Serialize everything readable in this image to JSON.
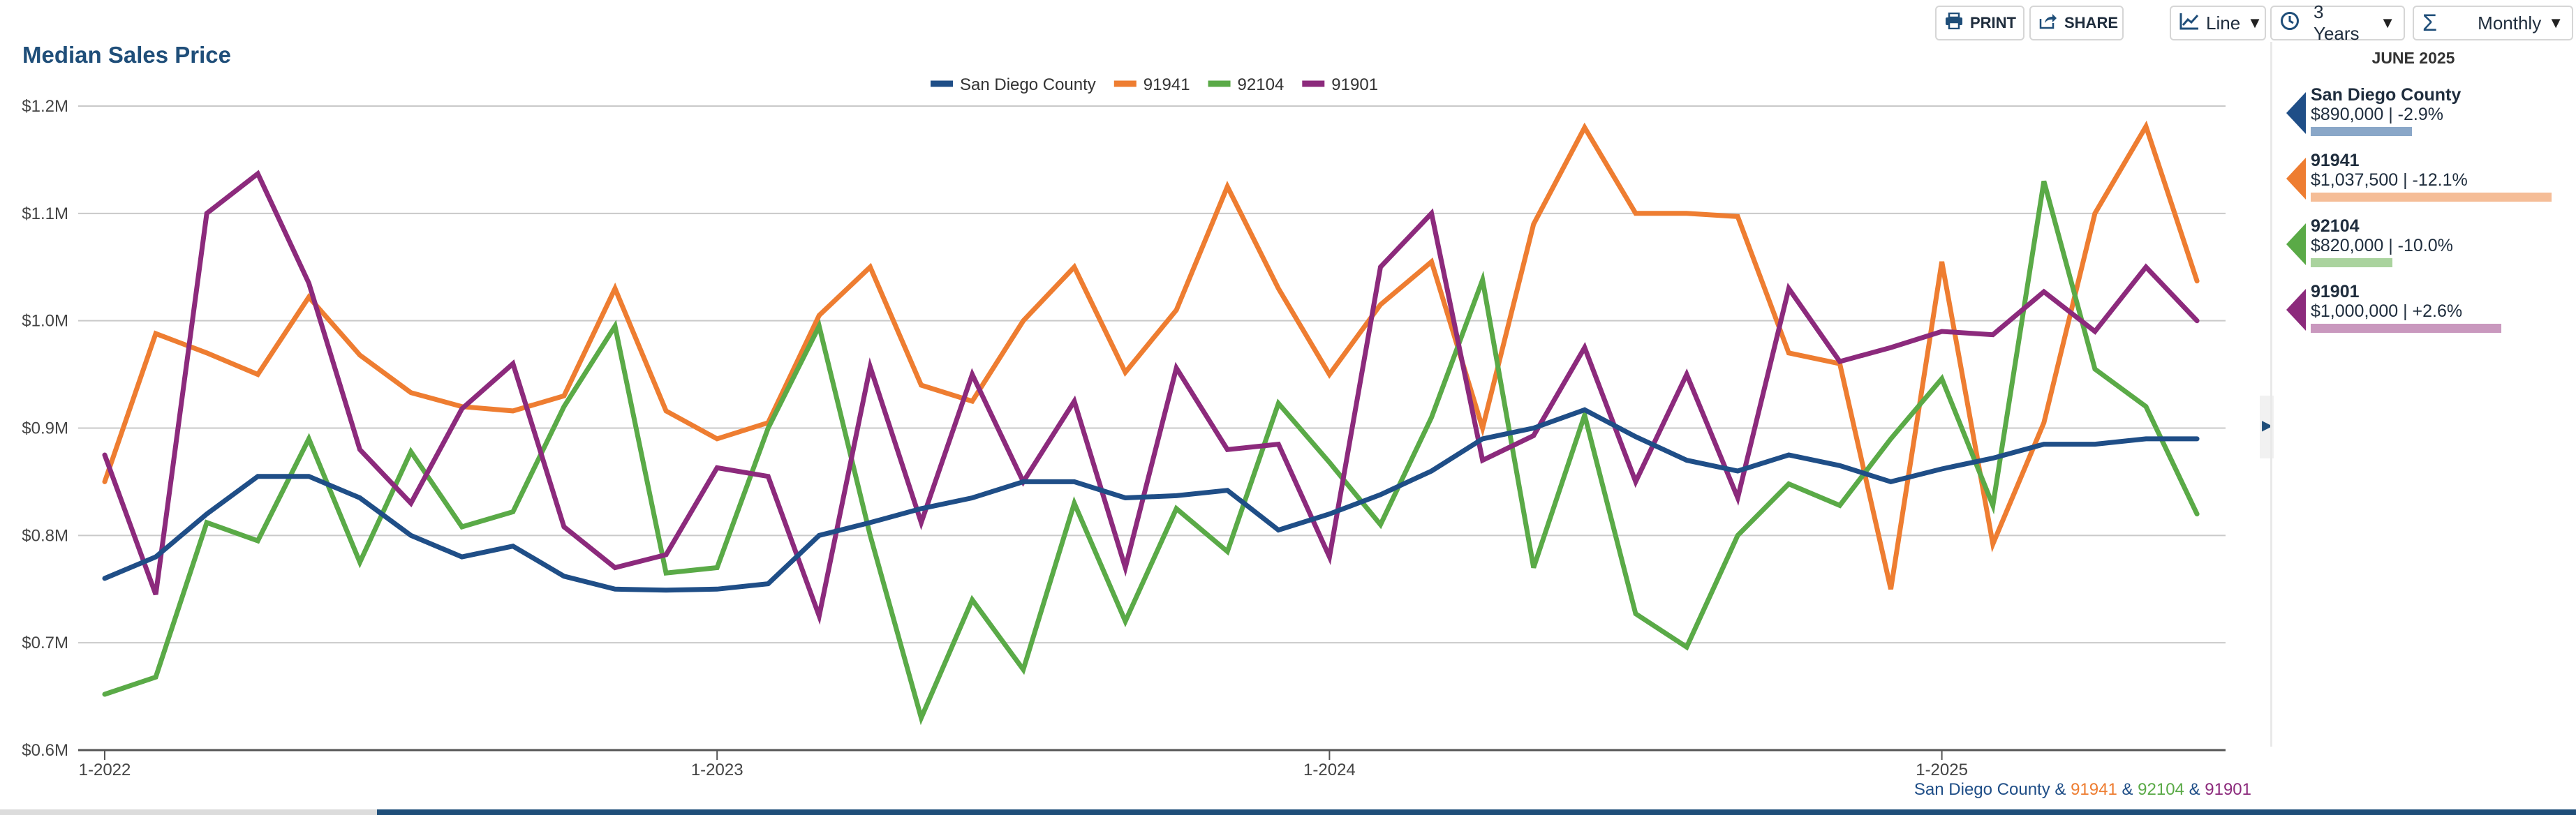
{
  "toolbar": {
    "print_label": "PRINT",
    "share_label": "SHARE",
    "chart_type_label": "Line",
    "period_label": "3 Years",
    "interval_label": "Monthly"
  },
  "side_panel": {
    "date_label": "JUNE 2025",
    "entries": [
      {
        "name": "San Diego County",
        "value": "$890,000 | -2.9%",
        "color": "#1f4e87",
        "bar_color": "#8aa7c8",
        "bar_fraction": 0.42
      },
      {
        "name": "91941",
        "value": "$1,037,500 | -12.1%",
        "color": "#ee7d31",
        "bar_color": "#f5bd97",
        "bar_fraction": 1.0
      },
      {
        "name": "92104",
        "value": "$820,000 | -10.0%",
        "color": "#5aaa47",
        "bar_color": "#aad39e",
        "bar_fraction": 0.34
      },
      {
        "name": "91901",
        "value": "$1,000,000 | +2.6%",
        "color": "#8c2a7c",
        "bar_color": "#c998be",
        "bar_fraction": 0.79
      }
    ]
  },
  "footer_legend": {
    "names": [
      "San Diego County",
      "91941",
      "92104",
      "91901"
    ],
    "separator": " & "
  },
  "chart_data": {
    "type": "line",
    "title": "Median Sales Price",
    "xlabel": "",
    "ylabel": "",
    "x_tick_labels": [
      "1-2022",
      "1-2023",
      "1-2024",
      "1-2025"
    ],
    "y_tick_labels": [
      "$0.6M",
      "$0.7M",
      "$0.8M",
      "$0.9M",
      "$1.0M",
      "$1.1M",
      "$1.2M"
    ],
    "ylim": [
      0.6,
      1.2
    ],
    "y_unit": "millions USD",
    "legend": "top-center",
    "grid": true,
    "months": [
      "1-2022",
      "2-2022",
      "3-2022",
      "4-2022",
      "5-2022",
      "6-2022",
      "7-2022",
      "8-2022",
      "9-2022",
      "10-2022",
      "11-2022",
      "12-2022",
      "1-2023",
      "2-2023",
      "3-2023",
      "4-2023",
      "5-2023",
      "6-2023",
      "7-2023",
      "8-2023",
      "9-2023",
      "10-2023",
      "11-2023",
      "12-2023",
      "1-2024",
      "2-2024",
      "3-2024",
      "4-2024",
      "5-2024",
      "6-2024",
      "7-2024",
      "8-2024",
      "9-2024",
      "10-2024",
      "11-2024",
      "12-2024",
      "1-2025",
      "2-2025",
      "3-2025",
      "4-2025",
      "5-2025",
      "6-2025"
    ],
    "series": [
      {
        "name": "San Diego County",
        "color": "#1f4e87",
        "values": [
          0.76,
          0.78,
          0.82,
          0.855,
          0.855,
          0.835,
          0.8,
          0.78,
          0.79,
          0.762,
          0.75,
          0.749,
          0.75,
          0.755,
          0.8,
          0.812,
          0.825,
          0.835,
          0.85,
          0.85,
          0.835,
          0.837,
          0.842,
          0.805,
          0.82,
          0.838,
          0.86,
          0.89,
          0.9,
          0.917,
          0.892,
          0.87,
          0.86,
          0.875,
          0.865,
          0.85,
          0.862,
          0.872,
          0.885,
          0.885,
          0.89,
          0.89
        ]
      },
      {
        "name": "91941",
        "color": "#ee7d31",
        "values": [
          0.85,
          0.988,
          0.97,
          0.95,
          1.022,
          0.968,
          0.933,
          0.92,
          0.916,
          0.93,
          1.03,
          0.916,
          0.89,
          0.905,
          1.005,
          1.05,
          0.94,
          0.925,
          1.0,
          1.05,
          0.952,
          1.01,
          1.125,
          1.03,
          0.95,
          1.015,
          1.055,
          0.9,
          1.09,
          1.18,
          1.1,
          1.1,
          1.097,
          0.97,
          0.96,
          0.75,
          1.055,
          0.792,
          0.905,
          1.1,
          1.181,
          1.037
        ]
      },
      {
        "name": "92104",
        "color": "#5aaa47",
        "values": [
          0.652,
          0.668,
          0.812,
          0.795,
          0.89,
          0.775,
          0.878,
          0.808,
          0.822,
          0.92,
          0.995,
          0.765,
          0.77,
          0.9,
          0.995,
          0.8,
          0.63,
          0.74,
          0.675,
          0.83,
          0.72,
          0.825,
          0.785,
          0.923,
          0.868,
          0.81,
          0.91,
          1.038,
          0.77,
          0.912,
          0.727,
          0.696,
          0.8,
          0.848,
          0.828,
          0.89,
          0.946,
          0.828,
          1.13,
          0.955,
          0.92,
          0.82
        ]
      },
      {
        "name": "91901",
        "color": "#8c2a7c",
        "values": [
          0.875,
          0.745,
          1.1,
          1.137,
          1.035,
          0.88,
          0.83,
          0.918,
          0.96,
          0.808,
          0.77,
          0.782,
          0.863,
          0.855,
          0.725,
          0.957,
          0.812,
          0.95,
          0.85,
          0.925,
          0.77,
          0.956,
          0.88,
          0.885,
          0.78,
          1.05,
          1.1,
          0.87,
          0.893,
          0.975,
          0.85,
          0.95,
          0.835,
          1.03,
          0.962,
          0.975,
          0.99,
          0.987,
          1.027,
          0.99,
          1.05,
          1.0
        ]
      }
    ]
  }
}
